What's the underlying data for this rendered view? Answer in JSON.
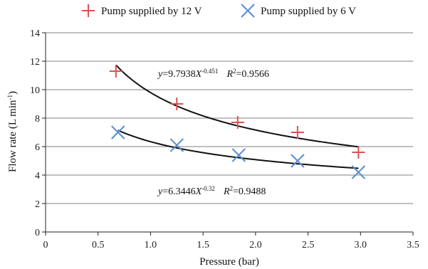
{
  "chart_data": {
    "type": "scatter",
    "xlabel": "Pressure (bar)",
    "ylabel": "Flow rate (L min",
    "ylabel_sup": "-1",
    "ylabel_close": ")",
    "xlim": [
      0,
      3.5
    ],
    "ylim": [
      0,
      14
    ],
    "x_ticks": [
      "0",
      "0.5",
      "1.0",
      "1.5",
      "2.0",
      "2.5",
      "3.0",
      "3.5"
    ],
    "y_ticks": [
      "0",
      "2",
      "4",
      "6",
      "8",
      "10",
      "12",
      "14"
    ],
    "grid": "horizontal",
    "legend_position": "top",
    "series": [
      {
        "name": "Pump supplied by 12 V",
        "marker": "plus",
        "color": "#d9534f",
        "x": [
          0.67,
          1.25,
          1.83,
          2.4,
          2.98
        ],
        "y": [
          11.3,
          9.0,
          7.7,
          7.0,
          5.6
        ],
        "fit": {
          "a": 9.7938,
          "b": -0.451,
          "x_range": [
            0.67,
            2.98
          ],
          "y_lhs": "y",
          "y_eq": "=9.7938",
          "x_var": "X",
          "exp": "-0.451",
          "r_lhs": "R",
          "r_sup": "2",
          "r_val": "=0.9566"
        }
      },
      {
        "name": "Pump supplied by 6 V",
        "marker": "x",
        "color": "#5b8fd0",
        "x": [
          0.69,
          1.25,
          1.84,
          2.4,
          2.98
        ],
        "y": [
          7.0,
          6.1,
          5.4,
          5.0,
          4.2
        ],
        "fit": {
          "a": 6.3446,
          "b": -0.32,
          "x_range": [
            0.69,
            2.98
          ],
          "y_lhs": "y",
          "y_eq": "=6.3446",
          "x_var": "X",
          "exp": "-0.32",
          "r_lhs": "R",
          "r_sup": "2",
          "r_val": "=0.9488"
        }
      }
    ],
    "fit_line_color": "#111111",
    "grid_color": "#808080"
  }
}
